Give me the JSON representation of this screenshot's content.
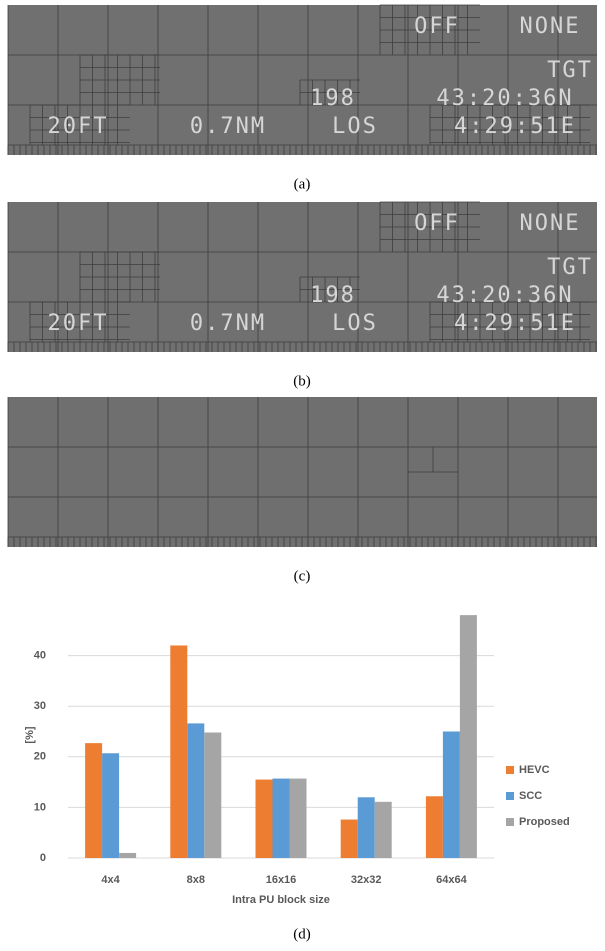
{
  "panels": [
    {
      "caption": "(a)",
      "overlay": [
        "OFF",
        "NONE",
        "TGT",
        "198",
        "43:20:36N",
        "20FT",
        "0.7NM",
        "LOS",
        "4:29:51E"
      ]
    },
    {
      "caption": "(b)",
      "overlay": [
        "OFF",
        "NONE",
        "TGT",
        "198",
        "43:20:36N",
        "20FT",
        "0.7NM",
        "LOS",
        "4:29:51E"
      ]
    },
    {
      "caption": "(c)"
    }
  ],
  "chart_caption": "(d)",
  "chart_data": {
    "type": "bar",
    "categories": [
      "4x4",
      "8x8",
      "16x16",
      "32x32",
      "64x64"
    ],
    "series": [
      {
        "name": "HEVC",
        "color": "#ed7d31",
        "values": [
          22.7,
          42,
          15.5,
          7.6,
          12.2
        ]
      },
      {
        "name": "SCC",
        "color": "#5b9bd5",
        "values": [
          20.7,
          26.6,
          15.7,
          12,
          25
        ]
      },
      {
        "name": "Proposed",
        "color": "#a5a5a5",
        "values": [
          1,
          24.8,
          15.7,
          11.1,
          48
        ]
      }
    ],
    "y_label": "[%]",
    "x_label": "Intra PU block size",
    "ylim": [
      0,
      50
    ],
    "yticks": [
      0,
      10,
      20,
      30,
      40
    ],
    "grid": true,
    "legend": "right"
  }
}
